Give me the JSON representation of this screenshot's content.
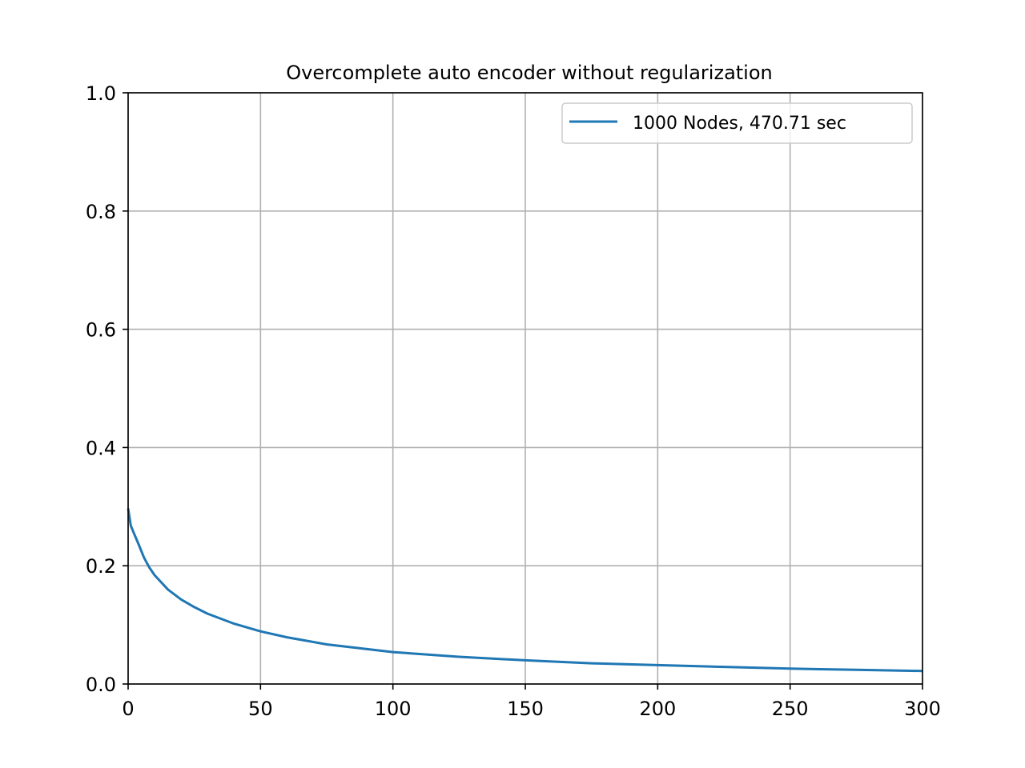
{
  "chart_data": {
    "type": "line",
    "title": "Overcomplete auto encoder without regularization",
    "xlabel": "",
    "ylabel": "",
    "xlim": [
      0,
      300
    ],
    "ylim": [
      0.0,
      1.0
    ],
    "xticks": [
      0,
      50,
      100,
      150,
      200,
      250,
      300
    ],
    "xtick_labels": [
      "0",
      "50",
      "100",
      "150",
      "200",
      "250",
      "300"
    ],
    "yticks": [
      0.0,
      0.2,
      0.4,
      0.6,
      0.8,
      1.0
    ],
    "ytick_labels": [
      "0.0",
      "0.2",
      "0.4",
      "0.6",
      "0.8",
      "1.0"
    ],
    "grid": true,
    "legend_position": "top-right",
    "series": [
      {
        "name": "1000 Nodes, 470.71 sec",
        "color": "#1f77b4",
        "x": [
          0,
          1,
          2,
          4,
          6,
          8,
          10,
          15,
          20,
          25,
          30,
          40,
          50,
          60,
          75,
          100,
          125,
          150,
          175,
          200,
          225,
          250,
          275,
          300
        ],
        "y": [
          0.297,
          0.268,
          0.257,
          0.236,
          0.214,
          0.197,
          0.184,
          0.16,
          0.143,
          0.13,
          0.119,
          0.102,
          0.089,
          0.079,
          0.067,
          0.054,
          0.046,
          0.04,
          0.035,
          0.032,
          0.029,
          0.026,
          0.024,
          0.022
        ]
      }
    ]
  }
}
